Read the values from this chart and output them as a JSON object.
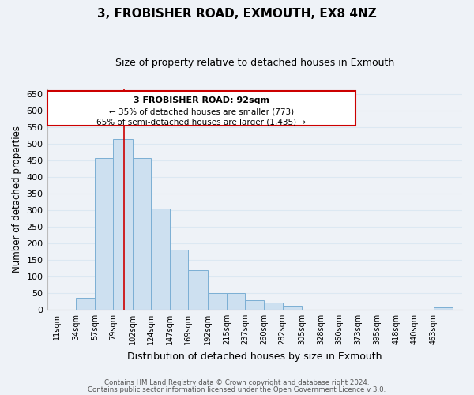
{
  "title": "3, FROBISHER ROAD, EXMOUTH, EX8 4NZ",
  "subtitle": "Size of property relative to detached houses in Exmouth",
  "xlabel": "Distribution of detached houses by size in Exmouth",
  "ylabel": "Number of detached properties",
  "bar_color": "#cde0f0",
  "bar_edge_color": "#7bafd4",
  "categories": [
    "11sqm",
    "34sqm",
    "57sqm",
    "79sqm",
    "102sqm",
    "124sqm",
    "147sqm",
    "169sqm",
    "192sqm",
    "215sqm",
    "237sqm",
    "260sqm",
    "282sqm",
    "305sqm",
    "328sqm",
    "350sqm",
    "373sqm",
    "395sqm",
    "418sqm",
    "440sqm",
    "463sqm"
  ],
  "values": [
    0,
    35,
    458,
    515,
    458,
    305,
    181,
    118,
    50,
    50,
    28,
    22,
    12,
    0,
    0,
    0,
    0,
    0,
    0,
    0,
    8
  ],
  "bin_edges": [
    11,
    34,
    57,
    79,
    102,
    124,
    147,
    169,
    192,
    215,
    237,
    260,
    282,
    305,
    328,
    350,
    373,
    395,
    418,
    440,
    463,
    486
  ],
  "ylim": [
    0,
    665
  ],
  "yticks": [
    0,
    50,
    100,
    150,
    200,
    250,
    300,
    350,
    400,
    450,
    500,
    550,
    600,
    650
  ],
  "annotation_title": "3 FROBISHER ROAD: 92sqm",
  "annotation_line1": "← 35% of detached houses are smaller (773)",
  "annotation_line2": "65% of semi-detached houses are larger (1,435) →",
  "annotation_box_color": "#ffffff",
  "annotation_box_edge_color": "#cc0000",
  "property_line_x": 92,
  "property_line_color": "#cc0000",
  "footer1": "Contains HM Land Registry data © Crown copyright and database right 2024.",
  "footer2": "Contains public sector information licensed under the Open Government Licence v 3.0.",
  "grid_color": "#dce8f2",
  "background_color": "#eef2f7",
  "title_fontsize": 11,
  "subtitle_fontsize": 9
}
